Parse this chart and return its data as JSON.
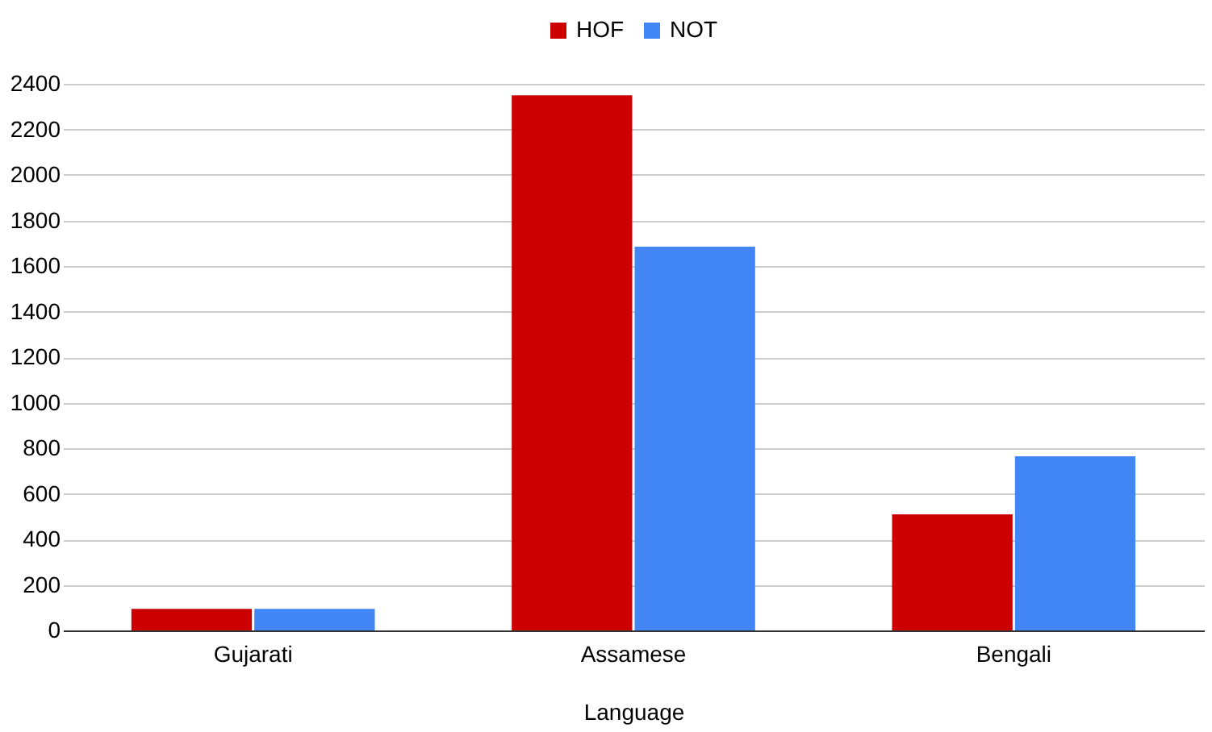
{
  "chart_data": {
    "type": "bar",
    "xlabel": "Language",
    "categories": [
      "Gujarati",
      "Assamese",
      "Bengali"
    ],
    "series": [
      {
        "name": "HOF",
        "color": "#cc0000",
        "values": [
          95,
          2350,
          510
        ]
      },
      {
        "name": "NOT",
        "color": "#4285f4",
        "values": [
          95,
          1685,
          765
        ]
      }
    ],
    "ylim": [
      0,
      2400
    ],
    "yticks": [
      0,
      200,
      400,
      600,
      800,
      1000,
      1200,
      1400,
      1600,
      1800,
      2000,
      2200,
      2400
    ],
    "grid": "y",
    "legend": "top"
  }
}
